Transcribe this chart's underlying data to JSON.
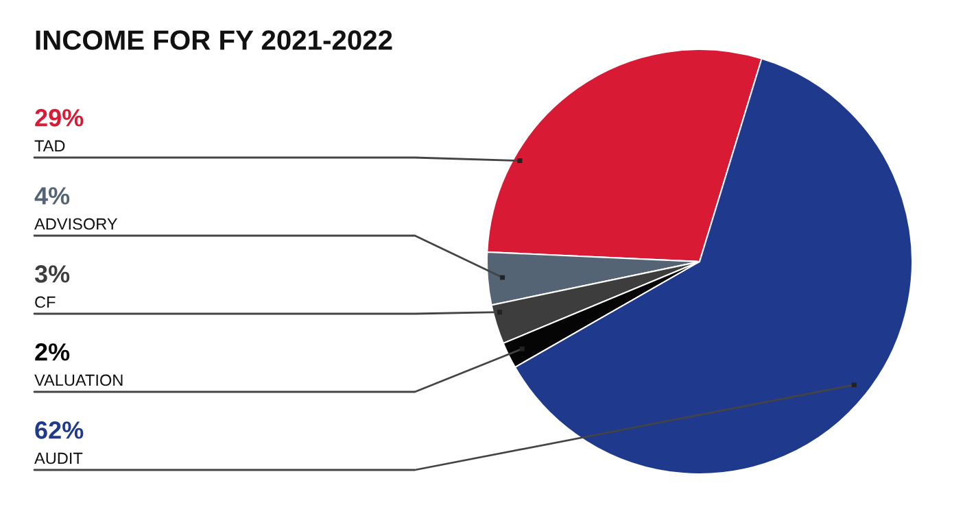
{
  "chart_data": {
    "type": "pie",
    "title": "INCOME FOR FY 2021-2022",
    "categories": [
      "TAD",
      "ADVISORY",
      "CF",
      "VALUATION",
      "AUDIT"
    ],
    "values": [
      29,
      4,
      3,
      2,
      62
    ],
    "value_labels": [
      "29%",
      "4%",
      "3%",
      "2%",
      "62%"
    ],
    "colors": [
      "#d91a35",
      "#546474",
      "#3d3d3d",
      "#050505",
      "#1f3a8c"
    ]
  }
}
